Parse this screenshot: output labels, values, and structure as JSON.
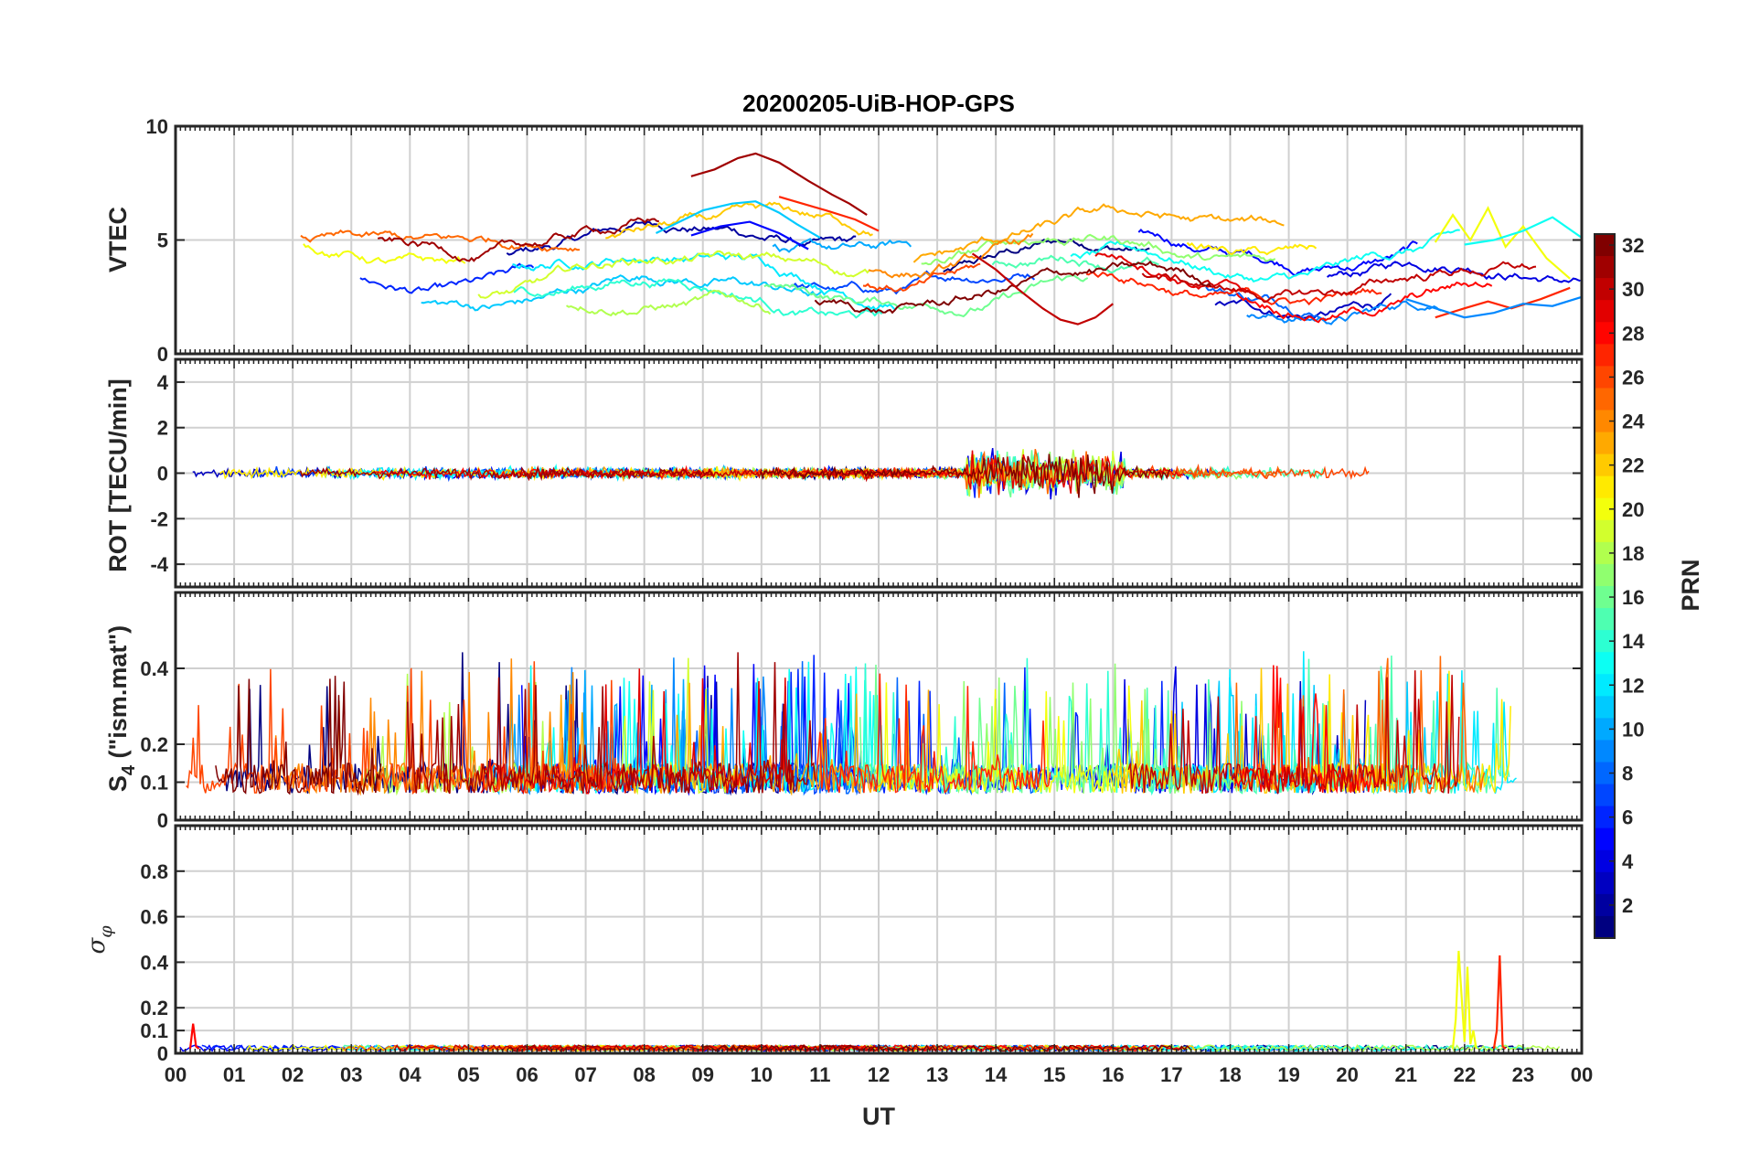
{
  "chart_data": {
    "type": "line",
    "title": "20200205-UiB-HOP-GPS",
    "xlabel": "UT",
    "x_tick_labels": [
      "00",
      "01",
      "02",
      "03",
      "04",
      "05",
      "06",
      "07",
      "08",
      "09",
      "10",
      "11",
      "12",
      "13",
      "14",
      "15",
      "16",
      "17",
      "18",
      "19",
      "20",
      "21",
      "22",
      "23",
      "00"
    ],
    "xlim": [
      0,
      24
    ],
    "grid": true,
    "colorbar": {
      "label": "PRN",
      "colormap": "jet",
      "range": [
        1,
        32
      ],
      "ticks": [
        "2",
        "4",
        "6",
        "8",
        "10",
        "12",
        "14",
        "16",
        "18",
        "20",
        "22",
        "24",
        "26",
        "28",
        "30",
        "32"
      ]
    },
    "panels": [
      {
        "id": "vtec",
        "ylabel": "VTEC",
        "ylim": [
          0,
          10
        ],
        "yticks": [
          "0",
          "5",
          "10"
        ],
        "series": [
          {
            "prn": 31,
            "x": [
              8.8,
              9.2,
              9.6,
              9.9,
              10.3,
              10.8,
              11.2,
              11.5,
              11.8
            ],
            "y": [
              7.8,
              8.1,
              8.6,
              8.8,
              8.4,
              7.6,
              7.0,
              6.6,
              6.1
            ]
          },
          {
            "prn": 11,
            "x": [
              8.2,
              8.6,
              9.0,
              9.5,
              9.9,
              10.3,
              10.6,
              11.0
            ],
            "y": [
              5.3,
              5.8,
              6.3,
              6.6,
              6.7,
              6.2,
              5.7,
              5.1
            ]
          },
          {
            "prn": 5,
            "x": [
              8.8,
              9.3,
              9.8,
              10.3,
              10.8
            ],
            "y": [
              5.2,
              5.6,
              5.8,
              5.3,
              4.6
            ]
          },
          {
            "prn": 27,
            "x": [
              10.3,
              10.7,
              11.1,
              11.6,
              12.0
            ],
            "y": [
              6.9,
              6.6,
              6.3,
              5.9,
              5.4
            ]
          },
          {
            "prn": 20,
            "x": [
              21.5,
              21.8,
              22.1,
              22.4,
              22.7,
              23.0,
              23.4,
              23.8
            ],
            "y": [
              4.9,
              6.1,
              5.0,
              6.4,
              4.7,
              5.6,
              4.2,
              3.3
            ]
          },
          {
            "prn": 13,
            "x": [
              22.0,
              22.5,
              23.0,
              23.5,
              24.0
            ],
            "y": [
              4.8,
              5.0,
              5.4,
              6.0,
              5.1
            ]
          },
          {
            "prn": 30,
            "x": [
              13.6,
              14.0,
              14.4,
              14.8,
              15.1,
              15.4,
              15.7,
              16.0
            ],
            "y": [
              4.4,
              3.7,
              2.8,
              2.0,
              1.5,
              1.3,
              1.6,
              2.2
            ]
          },
          {
            "prn": 27,
            "x": [
              21.5,
              22.0,
              22.4,
              22.8,
              23.3,
              23.8
            ],
            "y": [
              1.6,
              2.0,
              2.3,
              2.0,
              2.4,
              2.9
            ]
          },
          {
            "prn": 9,
            "x": [
              21.0,
              21.5,
              22.0,
              22.5,
              23.0,
              23.5,
              24.0
            ],
            "y": [
              2.4,
              2.0,
              1.6,
              1.8,
              2.2,
              2.1,
              2.5
            ]
          }
        ]
      },
      {
        "id": "rot",
        "ylabel": "ROT [TECU/min]",
        "ylim": [
          -5,
          5
        ],
        "yticks": [
          "-4",
          "-2",
          "0",
          "2",
          "4"
        ],
        "series": []
      },
      {
        "id": "s4",
        "ylabel": "S4 (\"ism.mat\")",
        "ylabel_base": "S",
        "ylabel_sub": "4",
        "ylabel_rest": " (\"ism.mat\")",
        "ylim": [
          0,
          0.6
        ],
        "yticks": [
          "0",
          "0.1",
          "0.2",
          "0.4"
        ],
        "series": []
      },
      {
        "id": "sigphi",
        "ylabel": "σφ",
        "ylabel_base": "σ",
        "ylabel_sub": "φ",
        "ylim": [
          0,
          1
        ],
        "yticks": [
          "0",
          "0.1",
          "0.2",
          "0.4",
          "0.6",
          "0.8"
        ],
        "series": [
          {
            "prn": 20,
            "x": [
              21.8,
              21.85,
              21.9,
              22.0,
              22.05,
              22.1,
              22.15,
              22.2
            ],
            "y": [
              0.02,
              0.15,
              0.45,
              0.05,
              0.38,
              0.04,
              0.1,
              0.02
            ]
          },
          {
            "prn": 27,
            "x": [
              22.5,
              22.55,
              22.6,
              22.65,
              22.7
            ],
            "y": [
              0.02,
              0.1,
              0.43,
              0.03,
              0.02
            ]
          },
          {
            "prn": 28,
            "x": [
              0.25,
              0.3,
              0.35,
              0.4
            ],
            "y": [
              0.02,
              0.13,
              0.03,
              0.02
            ]
          }
        ]
      }
    ]
  }
}
